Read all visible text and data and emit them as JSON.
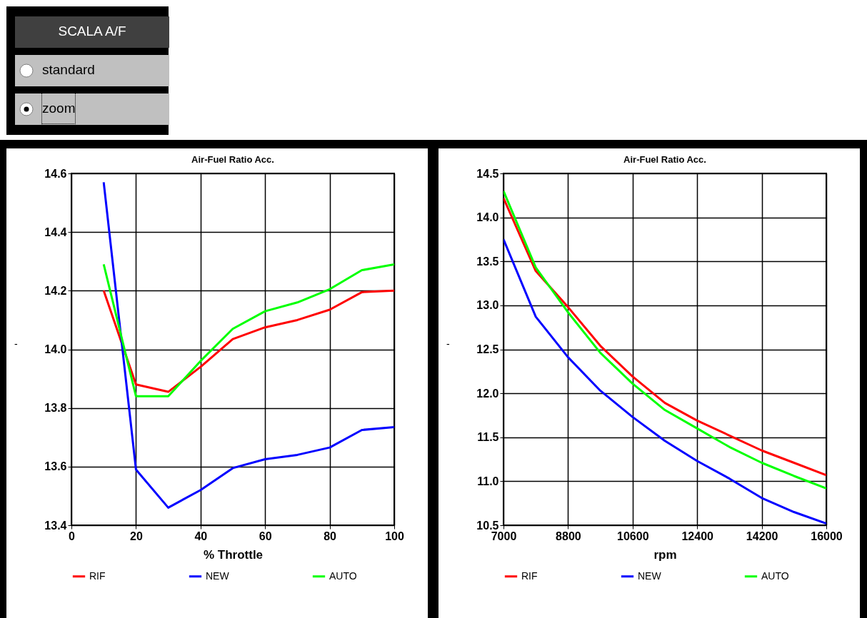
{
  "chart_data": [
    {
      "type": "other",
      "title": "SCALA A/F",
      "annotations": [
        "standard",
        "zoom"
      ]
    },
    {
      "type": "line",
      "title": "Air-Fuel Ratio Acc.",
      "xlabel": "% Throttle",
      "ylabel": "-",
      "x": [
        10,
        20,
        30,
        40,
        50,
        60,
        70,
        80,
        90,
        100
      ],
      "series": [
        {
          "name": "RIF",
          "color": "#ff0000",
          "values": [
            14.2,
            13.88,
            13.855,
            13.94,
            14.035,
            14.075,
            14.1,
            14.135,
            14.195,
            14.2
          ]
        },
        {
          "name": "NEW",
          "color": "#0000ff",
          "values": [
            14.57,
            13.59,
            13.46,
            13.52,
            13.595,
            13.625,
            13.64,
            13.665,
            13.725,
            13.735
          ]
        },
        {
          "name": "AUTO",
          "color": "#00ff00",
          "values": [
            14.29,
            13.84,
            13.84,
            13.96,
            14.07,
            14.13,
            14.16,
            14.205,
            14.27,
            14.29
          ]
        }
      ],
      "xlim": [
        0,
        100
      ],
      "xticks": [
        0,
        20,
        40,
        60,
        80,
        100
      ],
      "ylim": [
        13.4,
        14.6
      ],
      "yticks": [
        13.4,
        13.6,
        13.8,
        {
          "value": 14,
          "label": "14.0"
        },
        14.2,
        14.4,
        14.6
      ],
      "grid": true,
      "legend": "bottom"
    },
    {
      "type": "line",
      "title": "Air-Fuel Ratio Acc.",
      "xlabel": "rpm",
      "ylabel": "-",
      "x": [
        7000,
        7900,
        8800,
        9700,
        10600,
        11500,
        12400,
        13300,
        14200,
        15100,
        16000
      ],
      "series": [
        {
          "name": "RIF",
          "color": "#ff0000",
          "values": [
            14.22,
            13.39,
            12.98,
            12.54,
            12.19,
            11.89,
            11.69,
            11.52,
            11.35,
            11.21,
            11.07
          ]
        },
        {
          "name": "NEW",
          "color": "#0000ff",
          "values": [
            13.75,
            12.87,
            12.41,
            12.03,
            11.73,
            11.46,
            11.23,
            11.03,
            10.81,
            10.65,
            10.52
          ]
        },
        {
          "name": "AUTO",
          "color": "#00ff00",
          "values": [
            14.3,
            13.43,
            12.92,
            12.46,
            12.11,
            11.81,
            11.6,
            11.39,
            11.21,
            11.06,
            10.92
          ]
        }
      ],
      "xlim": [
        7000,
        16000
      ],
      "xticks": [
        7000,
        8800,
        10600,
        12400,
        14200,
        16000
      ],
      "ylim": [
        10.5,
        14.5
      ],
      "yticks": [
        10.5,
        {
          "value": 11,
          "label": "11.0"
        },
        11.5,
        {
          "value": 12,
          "label": "12.0"
        },
        12.5,
        {
          "value": 13,
          "label": "13.0"
        },
        13.5,
        {
          "value": 14,
          "label": "14.0"
        },
        14.5
      ],
      "grid": true,
      "legend": "bottom"
    }
  ]
}
